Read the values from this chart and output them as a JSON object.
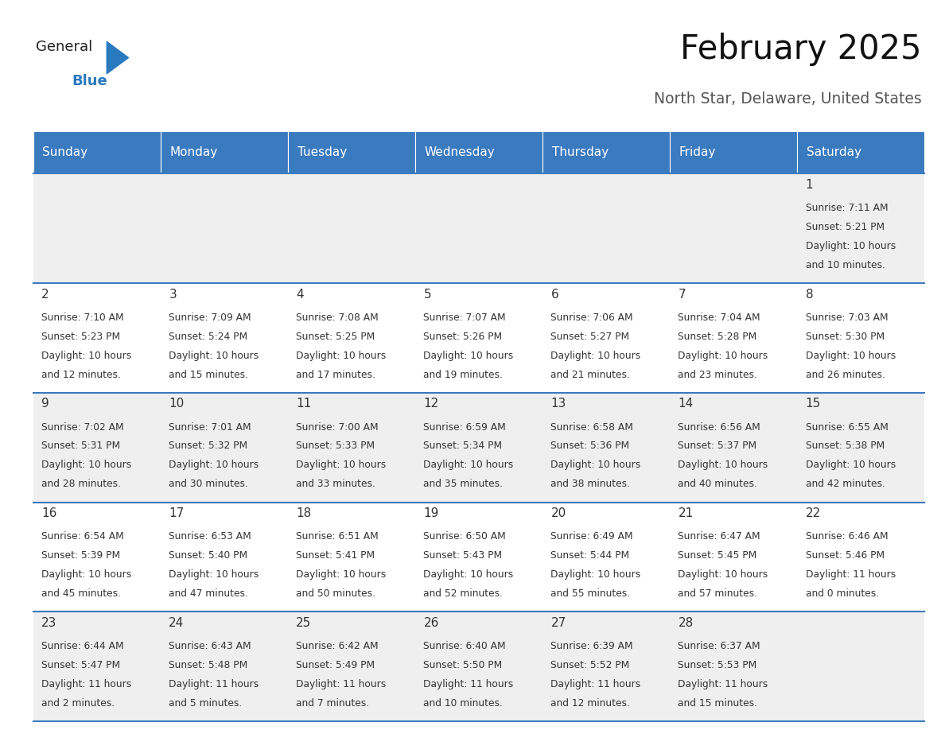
{
  "title": "February 2025",
  "subtitle": "North Star, Delaware, United States",
  "days_of_week": [
    "Sunday",
    "Monday",
    "Tuesday",
    "Wednesday",
    "Thursday",
    "Friday",
    "Saturday"
  ],
  "header_bg": "#3a7abf",
  "header_text": "#ffffff",
  "cell_bg_odd": "#efefef",
  "cell_bg_even": "#ffffff",
  "divider_color": "#3a7abf",
  "text_color": "#333333",
  "day_number_color": "#333333",
  "calendar": [
    [
      null,
      null,
      null,
      null,
      null,
      null,
      {
        "day": 1,
        "sunrise": "7:11 AM",
        "sunset": "5:21 PM",
        "daylight": "10 hours and 10 minutes."
      }
    ],
    [
      {
        "day": 2,
        "sunrise": "7:10 AM",
        "sunset": "5:23 PM",
        "daylight": "10 hours and 12 minutes."
      },
      {
        "day": 3,
        "sunrise": "7:09 AM",
        "sunset": "5:24 PM",
        "daylight": "10 hours and 15 minutes."
      },
      {
        "day": 4,
        "sunrise": "7:08 AM",
        "sunset": "5:25 PM",
        "daylight": "10 hours and 17 minutes."
      },
      {
        "day": 5,
        "sunrise": "7:07 AM",
        "sunset": "5:26 PM",
        "daylight": "10 hours and 19 minutes."
      },
      {
        "day": 6,
        "sunrise": "7:06 AM",
        "sunset": "5:27 PM",
        "daylight": "10 hours and 21 minutes."
      },
      {
        "day": 7,
        "sunrise": "7:04 AM",
        "sunset": "5:28 PM",
        "daylight": "10 hours and 23 minutes."
      },
      {
        "day": 8,
        "sunrise": "7:03 AM",
        "sunset": "5:30 PM",
        "daylight": "10 hours and 26 minutes."
      }
    ],
    [
      {
        "day": 9,
        "sunrise": "7:02 AM",
        "sunset": "5:31 PM",
        "daylight": "10 hours and 28 minutes."
      },
      {
        "day": 10,
        "sunrise": "7:01 AM",
        "sunset": "5:32 PM",
        "daylight": "10 hours and 30 minutes."
      },
      {
        "day": 11,
        "sunrise": "7:00 AM",
        "sunset": "5:33 PM",
        "daylight": "10 hours and 33 minutes."
      },
      {
        "day": 12,
        "sunrise": "6:59 AM",
        "sunset": "5:34 PM",
        "daylight": "10 hours and 35 minutes."
      },
      {
        "day": 13,
        "sunrise": "6:58 AM",
        "sunset": "5:36 PM",
        "daylight": "10 hours and 38 minutes."
      },
      {
        "day": 14,
        "sunrise": "6:56 AM",
        "sunset": "5:37 PM",
        "daylight": "10 hours and 40 minutes."
      },
      {
        "day": 15,
        "sunrise": "6:55 AM",
        "sunset": "5:38 PM",
        "daylight": "10 hours and 42 minutes."
      }
    ],
    [
      {
        "day": 16,
        "sunrise": "6:54 AM",
        "sunset": "5:39 PM",
        "daylight": "10 hours and 45 minutes."
      },
      {
        "day": 17,
        "sunrise": "6:53 AM",
        "sunset": "5:40 PM",
        "daylight": "10 hours and 47 minutes."
      },
      {
        "day": 18,
        "sunrise": "6:51 AM",
        "sunset": "5:41 PM",
        "daylight": "10 hours and 50 minutes."
      },
      {
        "day": 19,
        "sunrise": "6:50 AM",
        "sunset": "5:43 PM",
        "daylight": "10 hours and 52 minutes."
      },
      {
        "day": 20,
        "sunrise": "6:49 AM",
        "sunset": "5:44 PM",
        "daylight": "10 hours and 55 minutes."
      },
      {
        "day": 21,
        "sunrise": "6:47 AM",
        "sunset": "5:45 PM",
        "daylight": "10 hours and 57 minutes."
      },
      {
        "day": 22,
        "sunrise": "6:46 AM",
        "sunset": "5:46 PM",
        "daylight": "11 hours and 0 minutes."
      }
    ],
    [
      {
        "day": 23,
        "sunrise": "6:44 AM",
        "sunset": "5:47 PM",
        "daylight": "11 hours and 2 minutes."
      },
      {
        "day": 24,
        "sunrise": "6:43 AM",
        "sunset": "5:48 PM",
        "daylight": "11 hours and 5 minutes."
      },
      {
        "day": 25,
        "sunrise": "6:42 AM",
        "sunset": "5:49 PM",
        "daylight": "11 hours and 7 minutes."
      },
      {
        "day": 26,
        "sunrise": "6:40 AM",
        "sunset": "5:50 PM",
        "daylight": "11 hours and 10 minutes."
      },
      {
        "day": 27,
        "sunrise": "6:39 AM",
        "sunset": "5:52 PM",
        "daylight": "11 hours and 12 minutes."
      },
      {
        "day": 28,
        "sunrise": "6:37 AM",
        "sunset": "5:53 PM",
        "daylight": "11 hours and 15 minutes."
      },
      null
    ]
  ]
}
